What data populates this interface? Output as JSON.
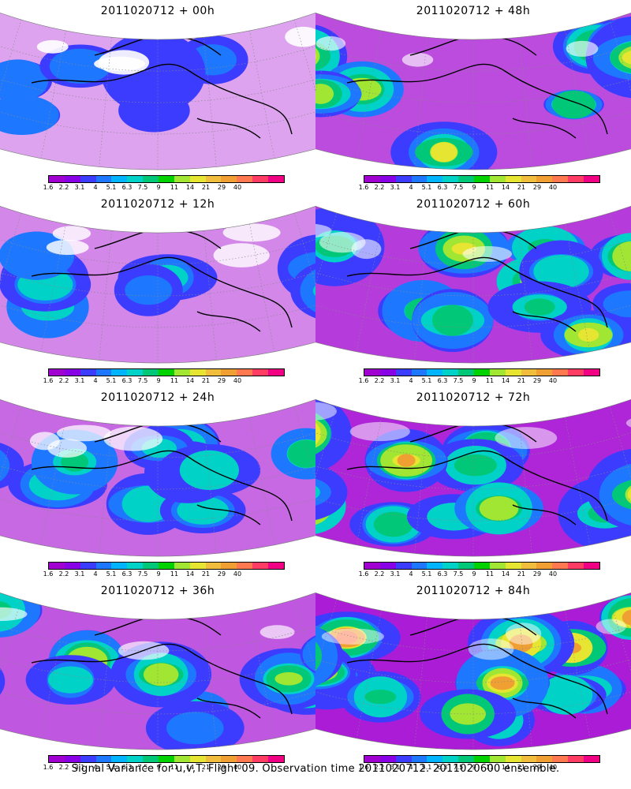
{
  "footer": "Signal Variance for u,v,T. Flight 09. Observation time 2011020712. 2011020600 ensemble.",
  "colorbar": {
    "labels": [
      "1.6",
      "2.2",
      "3.1",
      "4",
      "5.1",
      "6.3",
      "7.5",
      "9",
      "11",
      "14",
      "21",
      "29",
      "40"
    ],
    "colors": [
      "#a000d0",
      "#8a00e6",
      "#3c3cff",
      "#1e78ff",
      "#00b4ff",
      "#00d2c8",
      "#00c878",
      "#00d200",
      "#a0e632",
      "#e6e632",
      "#f0be3c",
      "#f0a032",
      "#ff7850",
      "#ff3c64",
      "#f00082"
    ]
  },
  "panels": [
    {
      "id": "p00",
      "title": "2011020712 + 00h",
      "intensity": 0.15
    },
    {
      "id": "p48",
      "title": "2011020712 + 48h",
      "intensity": 0.6
    },
    {
      "id": "p12",
      "title": "2011020712 + 12h",
      "intensity": 0.3
    },
    {
      "id": "p60",
      "title": "2011020712 + 60h",
      "intensity": 0.7
    },
    {
      "id": "p24",
      "title": "2011020712 + 24h",
      "intensity": 0.45
    },
    {
      "id": "p72",
      "title": "2011020712 + 72h",
      "intensity": 0.8
    },
    {
      "id": "p36",
      "title": "2011020712 + 36h",
      "intensity": 0.55
    },
    {
      "id": "p84",
      "title": "2011020712 + 84h",
      "intensity": 0.85
    }
  ]
}
